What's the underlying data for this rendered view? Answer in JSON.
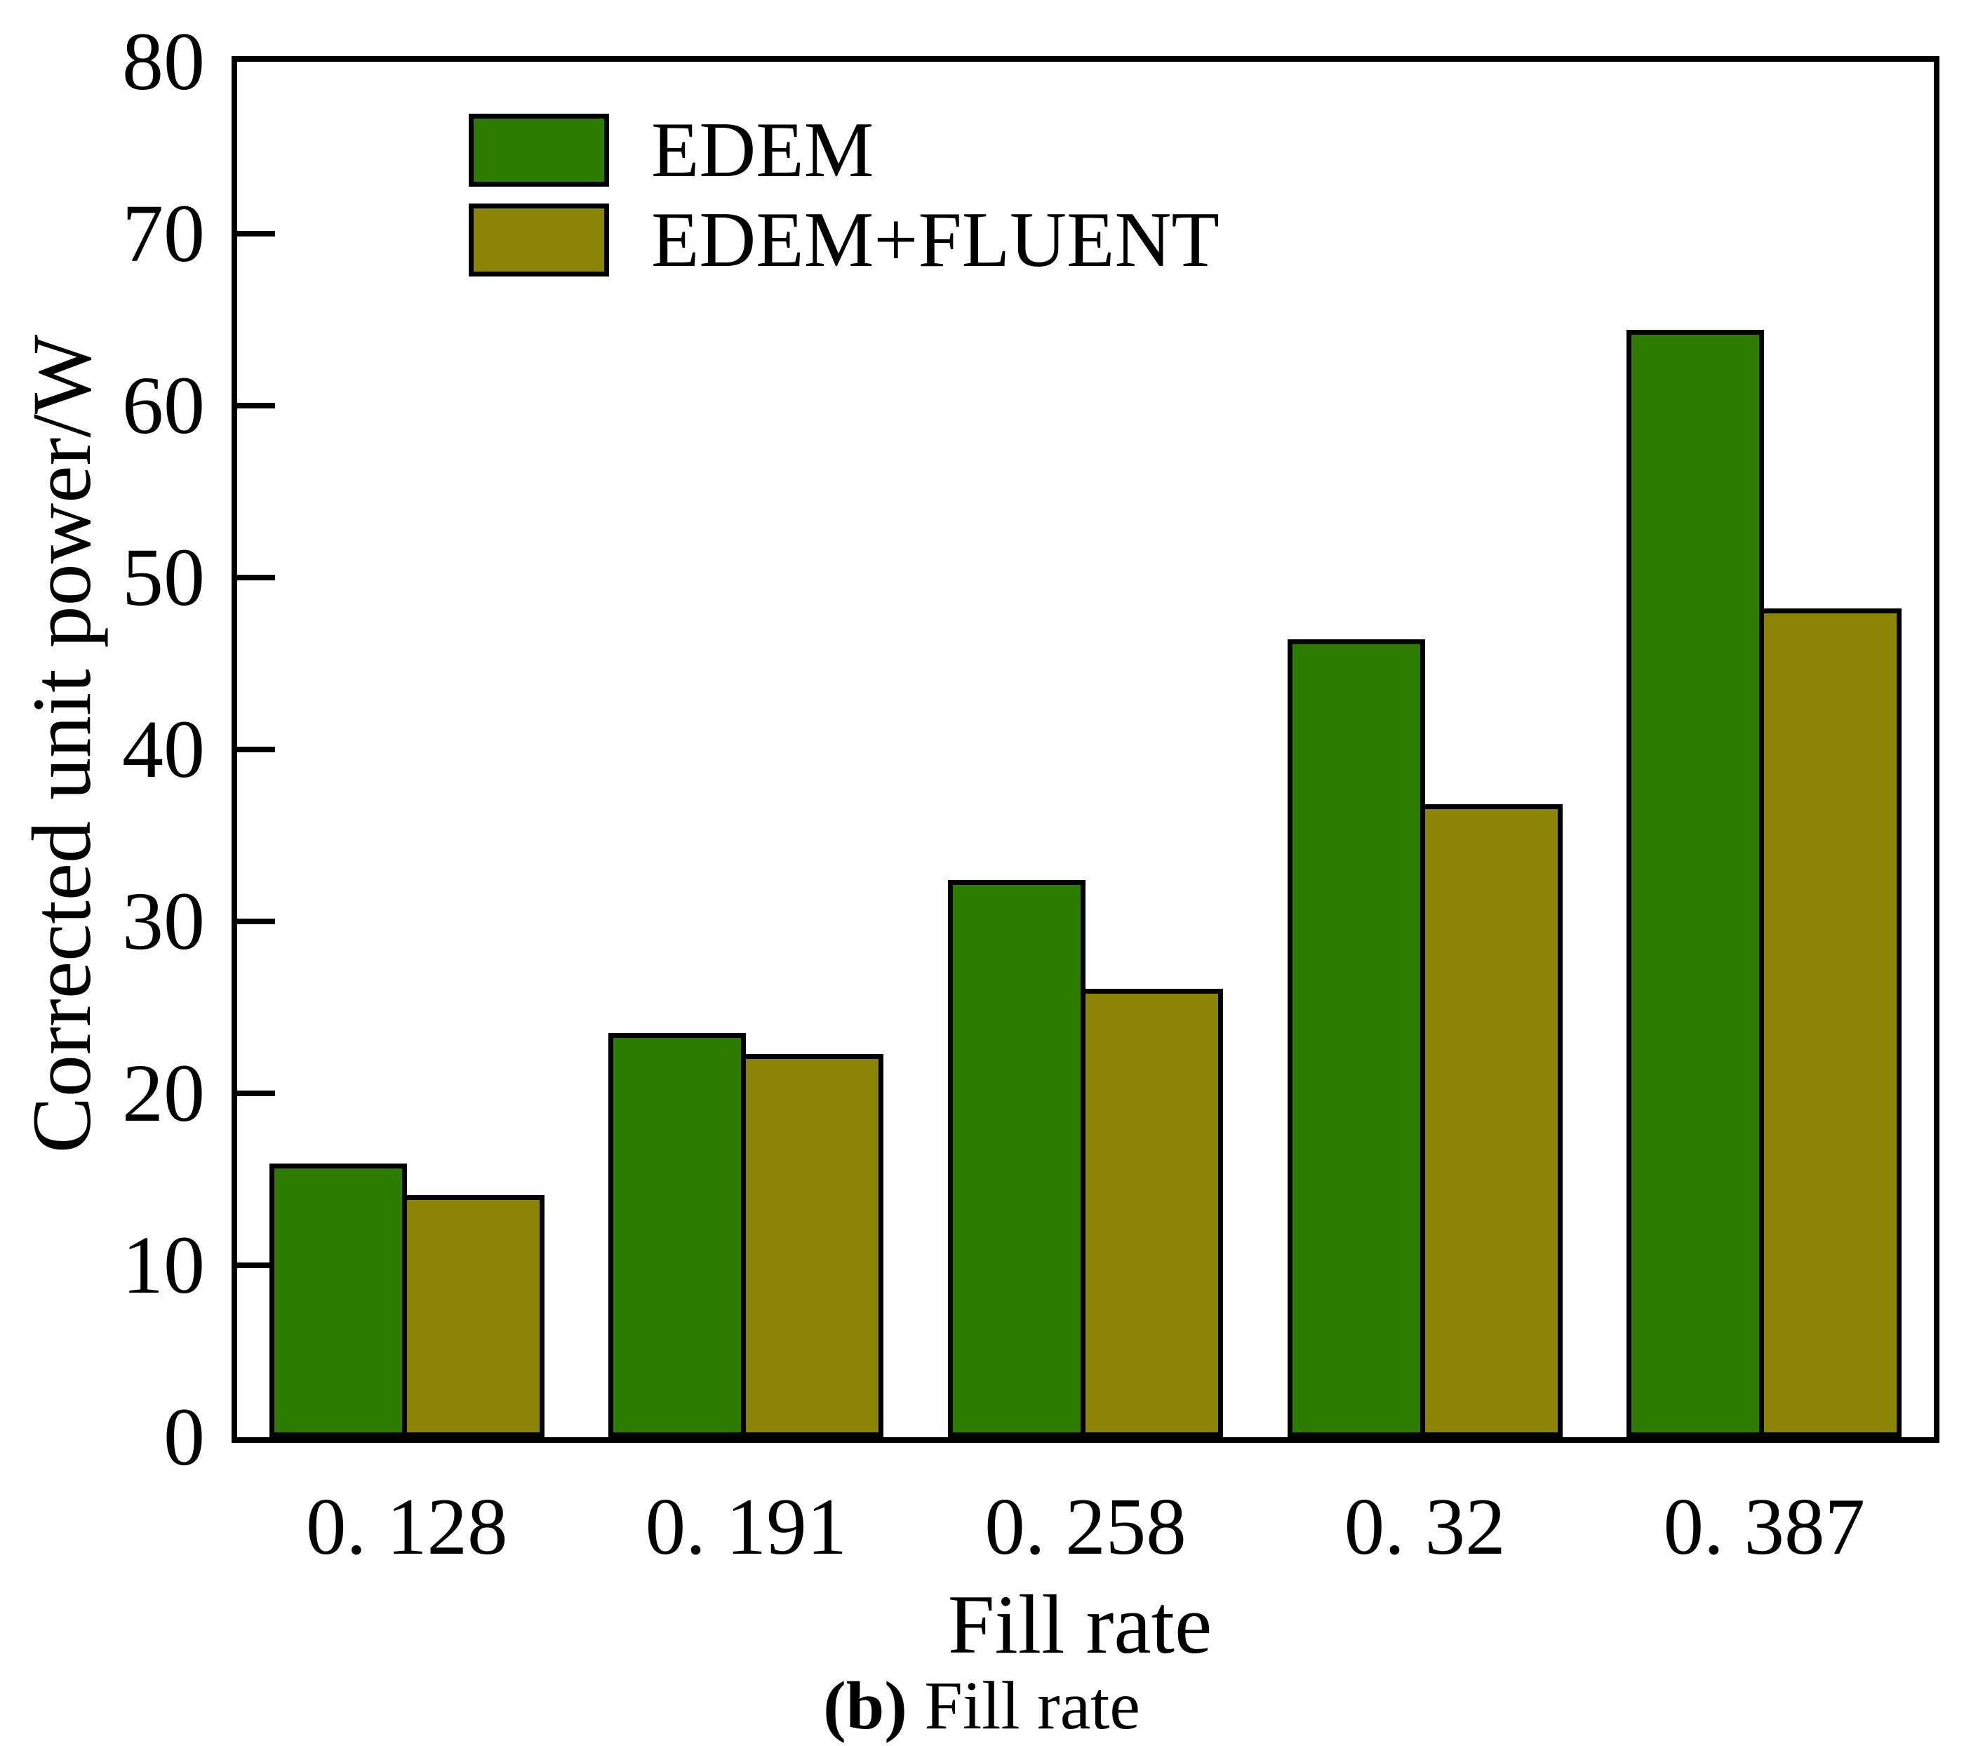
{
  "chart_data": {
    "type": "bar",
    "title": "",
    "categories": [
      "0. 128",
      "0. 191",
      "0. 258",
      "0. 32",
      "0. 387"
    ],
    "series": [
      {
        "name": "EDEM",
        "color": "#2e7b02",
        "values": [
          15.9,
          23.5,
          32.4,
          46.4,
          64.4
        ]
      },
      {
        "name": "EDEM+FLUENT",
        "color": "#8b8406",
        "values": [
          14.1,
          22.3,
          26.1,
          36.8,
          48.2
        ]
      }
    ],
    "xlabel": "Fill rate",
    "ylabel": "Corrected unit power/W",
    "ylim": [
      0,
      80
    ],
    "yticks": [
      0,
      10,
      20,
      30,
      40,
      50,
      60,
      70,
      80
    ],
    "grid": false,
    "legend_position": "top-left-inside",
    "bar_outline_color": "#000000"
  },
  "caption": {
    "bold": "(b)",
    "rest": " Fill rate"
  }
}
